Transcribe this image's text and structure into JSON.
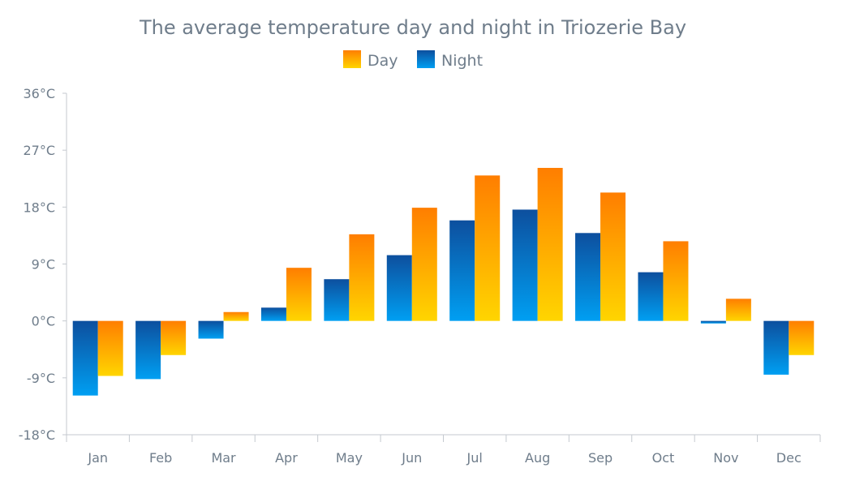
{
  "chart_data": {
    "type": "bar",
    "title": "The average temperature day and night in Triozerie Bay",
    "categories": [
      "Jan",
      "Feb",
      "Mar",
      "Apr",
      "May",
      "Jun",
      "Jul",
      "Aug",
      "Sep",
      "Oct",
      "Nov",
      "Dec"
    ],
    "series": [
      {
        "name": "Night",
        "values": [
          -11.8,
          -9.2,
          -2.8,
          2.1,
          6.6,
          10.4,
          15.9,
          17.6,
          13.9,
          7.7,
          -0.4,
          -8.5
        ],
        "color_top": "#0d4f9e",
        "color_bottom": "#009ff2"
      },
      {
        "name": "Day",
        "values": [
          -8.7,
          -5.4,
          1.4,
          8.4,
          13.7,
          17.9,
          23.0,
          24.2,
          20.3,
          12.6,
          3.5,
          -5.4
        ],
        "color_top": "#ff7e00",
        "color_bottom": "#ffd500"
      }
    ],
    "legend_order": [
      "Day",
      "Night"
    ],
    "legend": "top-center",
    "y_ticks": [
      "36°C",
      "27°C",
      "18°C",
      "9°C",
      "0°C",
      "-9°C",
      "-18°C"
    ],
    "ylim": [
      -18,
      36
    ],
    "y_step": 9,
    "y_unit": "°C",
    "grid": false,
    "xlabel": "",
    "ylabel": ""
  }
}
